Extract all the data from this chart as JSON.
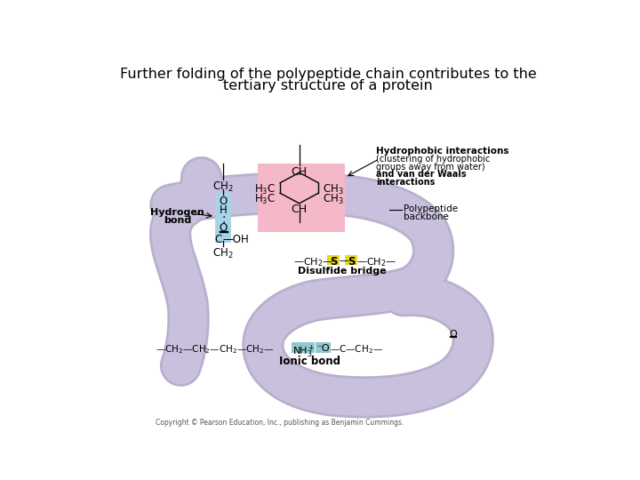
{
  "title_line1": "Further folding of the polypeptide chain contributes to the",
  "title_line2": "tertiary structure of a protein",
  "title_fontsize": 11.5,
  "bg_color": "#ffffff",
  "ribbon_color": "#c8c0dc",
  "ribbon_dark": "#b8b0cc",
  "pink_box_color": "#f5b8c8",
  "teal_box_color": "#90c8d0",
  "yellow_box_color": "#e8d820",
  "hbond_box_color": "#a8d4e8",
  "copyright": "Copyright © Pearson Education, Inc., publishing as Benjamin Cummings."
}
